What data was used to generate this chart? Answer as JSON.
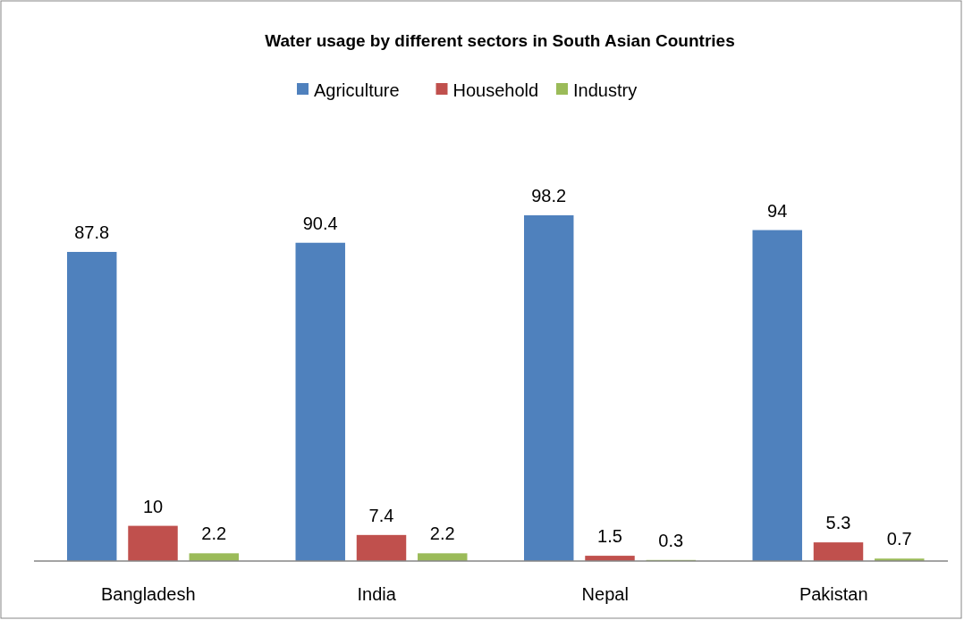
{
  "chart_data": {
    "type": "bar",
    "title": "Water usage by different sectors in South Asian Countries",
    "categories": [
      "Bangladesh",
      "India",
      "Nepal",
      "Pakistan"
    ],
    "series": [
      {
        "name": "Agriculture",
        "color": "#4f81bd",
        "values": [
          87.8,
          90.4,
          98.2,
          94
        ]
      },
      {
        "name": "Household",
        "color": "#c0504d",
        "values": [
          10,
          7.4,
          1.5,
          5.3
        ]
      },
      {
        "name": "Industry",
        "color": "#9bbb59",
        "values": [
          2.2,
          2.2,
          0.3,
          0.7
        ]
      }
    ],
    "data_labels": true,
    "legend": "top"
  }
}
